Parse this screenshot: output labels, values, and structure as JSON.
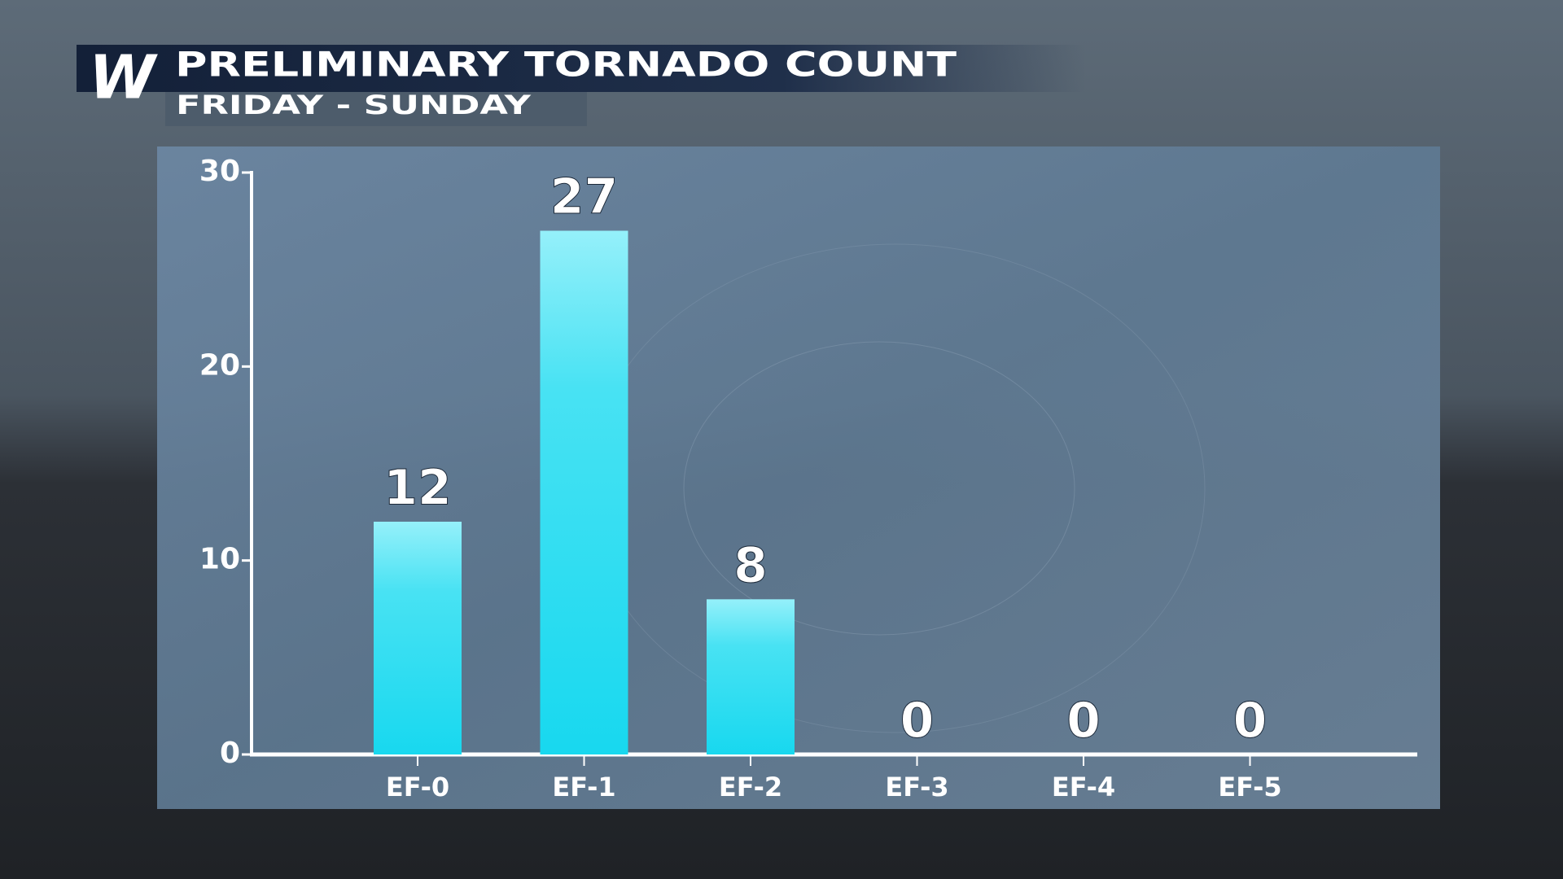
{
  "chart_data": {
    "type": "bar",
    "logo": "W",
    "title": "PRELIMINARY TORNADO COUNT",
    "subtitle": "FRIDAY - SUNDAY",
    "categories": [
      "EF-0",
      "EF-1",
      "EF-2",
      "EF-3",
      "EF-4",
      "EF-5"
    ],
    "values": [
      12,
      27,
      8,
      0,
      0,
      0
    ],
    "color": "#22dcf0",
    "ylim": [
      0,
      30
    ],
    "yticks": [
      0,
      10,
      20,
      30
    ],
    "grid": false
  }
}
